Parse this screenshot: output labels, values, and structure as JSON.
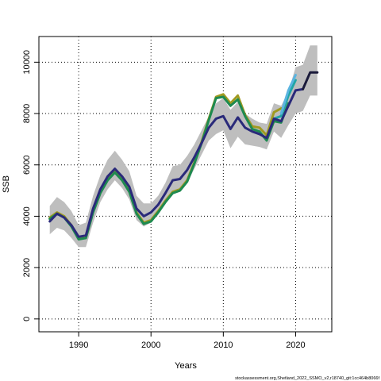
{
  "chart_data": {
    "type": "line",
    "title": "",
    "xlabel": "Years",
    "ylabel": "SSB",
    "caption": "stockassessment.org,Shetland_2022_SSMO_v2,r18740_git:1cc464b8066f",
    "xlim": [
      1984.5,
      2025
    ],
    "ylim": [
      -500,
      11000
    ],
    "x_ticks": [
      "1990",
      "2000",
      "2010",
      "2020"
    ],
    "y_ticks": [
      "0",
      "2000",
      "4000",
      "6000",
      "8000",
      "10000"
    ],
    "grid": true,
    "colors": {
      "band": "#bebebe",
      "main": "#2a2a7a",
      "olive": "#a09a20",
      "green": "#1e8a50",
      "teal": "#20a5a5",
      "lightblue": "#5ab4e0",
      "tail": "#1a1a3a"
    },
    "band": {
      "x": [
        1986,
        1987,
        1988,
        1989,
        1990,
        1991,
        1992,
        1993,
        1994,
        1995,
        1996,
        1997,
        1998,
        1999,
        2000,
        2001,
        2002,
        2003,
        2004,
        2005,
        2006,
        2007,
        2008,
        2009,
        2010,
        2011,
        2012,
        2013,
        2014,
        2015,
        2016,
        2017,
        2018,
        2019,
        2020,
        2021,
        2022,
        2023
      ],
      "upper": [
        4400,
        4750,
        4550,
        4200,
        3650,
        3750,
        4800,
        5600,
        6200,
        6550,
        6200,
        5750,
        4800,
        4500,
        4500,
        4800,
        5300,
        5950,
        6000,
        6350,
        6800,
        7350,
        7900,
        8400,
        8600,
        8150,
        8450,
        8000,
        7800,
        7650,
        7600,
        8400,
        8300,
        8850,
        9800,
        9900,
        10650,
        10650
      ],
      "lower": [
        3300,
        3550,
        3450,
        3150,
        2800,
        2800,
        3750,
        4550,
        5050,
        5400,
        5100,
        4650,
        3850,
        3600,
        3750,
        4050,
        4500,
        4900,
        4950,
        5300,
        5850,
        6400,
        6950,
        7200,
        7350,
        6650,
        7100,
        6800,
        6750,
        6700,
        6600,
        7300,
        7050,
        7550,
        8000,
        8100,
        8700,
        8700
      ]
    },
    "series": [
      {
        "color_key": "main",
        "x": [
          1986,
          1987,
          1988,
          1989,
          1990,
          1991,
          1992,
          1993,
          1994,
          1995,
          1996,
          1997,
          1998,
          1999,
          2000,
          2001,
          2002,
          2003,
          2004,
          2005,
          2006,
          2007,
          2008,
          2009,
          2010,
          2011,
          2012,
          2013,
          2014,
          2015,
          2016,
          2017,
          2018,
          2019,
          2020
        ],
        "y": [
          3800,
          4100,
          3950,
          3650,
          3200,
          3250,
          4300,
          5050,
          5550,
          5850,
          5550,
          5150,
          4300,
          4000,
          4150,
          4450,
          4900,
          5400,
          5450,
          5800,
          6300,
          6850,
          7450,
          7800,
          7900,
          7400,
          7850,
          7450,
          7300,
          7200,
          7050,
          7800,
          7700,
          8300,
          8900
        ]
      },
      {
        "color_key": "olive",
        "x": [
          1986,
          1987,
          1988,
          1989,
          1990,
          1991,
          1992,
          1993,
          1994,
          1995,
          1996,
          1997,
          1998,
          1999,
          2000,
          2001,
          2002,
          2003,
          2004,
          2005,
          2006,
          2007,
          2008,
          2009,
          2010,
          2011,
          2012,
          2013,
          2014,
          2015,
          2016,
          2017,
          2018
        ],
        "y": [
          3950,
          4150,
          4000,
          3650,
          3150,
          3150,
          4200,
          4950,
          5450,
          5750,
          5450,
          5000,
          4150,
          3750,
          3850,
          4200,
          4600,
          4950,
          5050,
          5400,
          6100,
          6900,
          7800,
          8650,
          8750,
          8400,
          8700,
          7950,
          7500,
          7450,
          7150,
          8050,
          8200
        ]
      },
      {
        "color_key": "green",
        "x": [
          1986,
          1987,
          1988,
          1989,
          1990,
          1991,
          1992,
          1993,
          1994,
          1995,
          1996,
          1997,
          1998,
          1999,
          2000,
          2001,
          2002,
          2003,
          2004,
          2005,
          2006,
          2007,
          2008,
          2009,
          2010,
          2011,
          2012,
          2013,
          2014,
          2015,
          2016,
          2017,
          2018,
          2019
        ],
        "y": [
          3900,
          4100,
          3950,
          3600,
          3100,
          3150,
          4150,
          4900,
          5400,
          5700,
          5400,
          4950,
          4100,
          3700,
          3800,
          4150,
          4550,
          4900,
          5000,
          5350,
          6050,
          6850,
          7750,
          8600,
          8650,
          8300,
          8550,
          7900,
          7400,
          7300,
          6950,
          7700,
          7650,
          8400
        ]
      },
      {
        "color_key": "teal",
        "x": [
          2017,
          2018,
          2019,
          2020
        ],
        "y": [
          7800,
          7900,
          8700,
          9300
        ]
      },
      {
        "color_key": "lightblue",
        "x": [
          2018,
          2019,
          2020
        ],
        "y": [
          8000,
          8900,
          9500
        ]
      },
      {
        "color_key": "main",
        "x": [
          2020,
          2021
        ],
        "y": [
          8900,
          8950
        ]
      },
      {
        "color_key": "tail",
        "x": [
          2021,
          2022,
          2023
        ],
        "y": [
          8950,
          9600,
          9600
        ]
      }
    ]
  }
}
